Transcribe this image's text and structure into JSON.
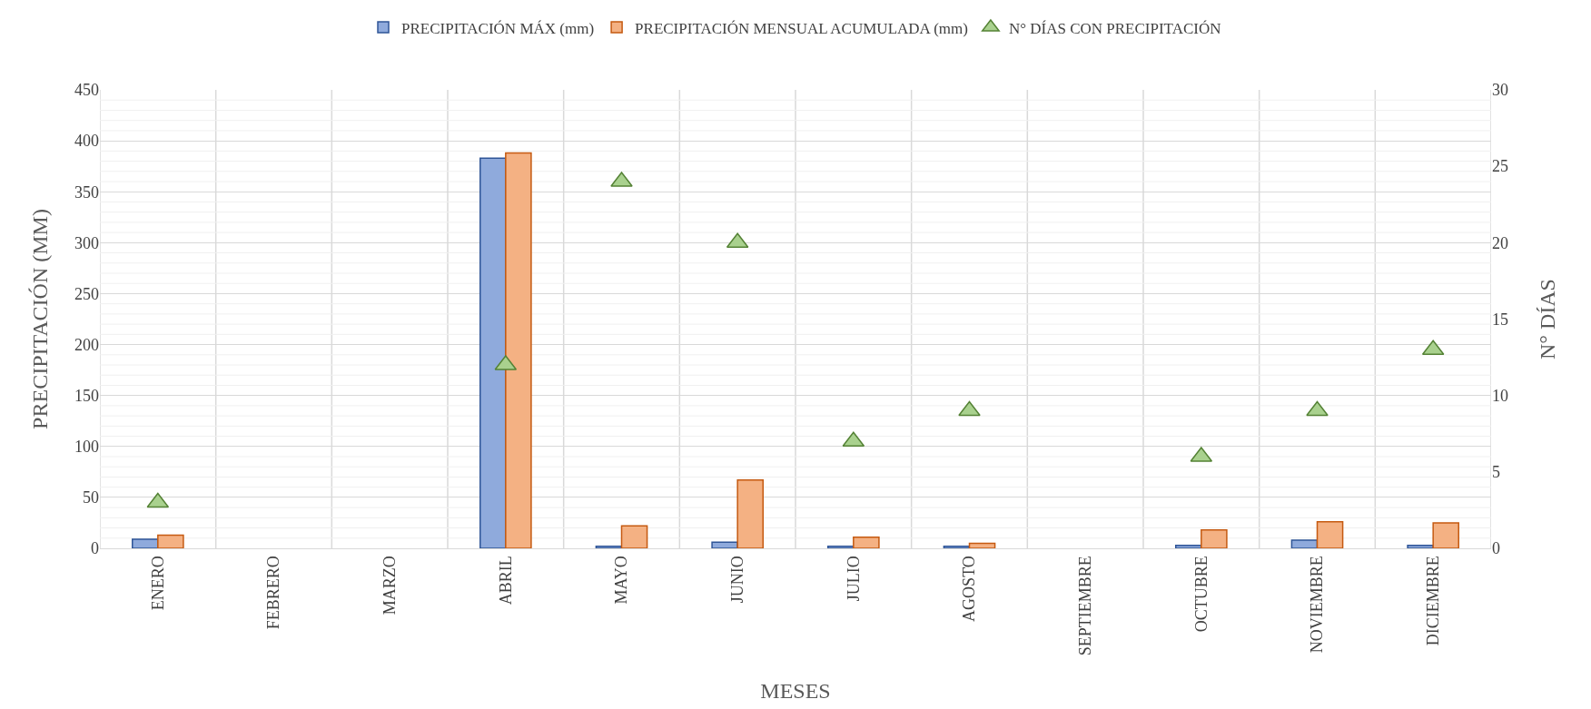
{
  "chart_data": {
    "type": "bar",
    "xlabel": "MESES",
    "ylabel": "PRECIPITACIÓN (MM)",
    "y2label": "N° DÍAS",
    "categories": [
      "ENERO",
      "FEBRERO",
      "MARZO",
      "ABRIL",
      "MAYO",
      "JUNIO",
      "JULIO",
      "AGOSTO",
      "SEPTIEMBRE",
      "OCTUBRE",
      "NOVIEMBRE",
      "DICIEMBRE"
    ],
    "series": [
      {
        "name": "PRECIPITACIÓN MÁX (mm)",
        "color": "#8faadc",
        "values": [
          9,
          null,
          null,
          383,
          2,
          6,
          2,
          2,
          null,
          3,
          8,
          3
        ]
      },
      {
        "name": "PRECIPITACIÓN MENSUAL ACUMULADA (mm)",
        "color": "#f4b183",
        "values": [
          13,
          null,
          null,
          388,
          22,
          67,
          11,
          5,
          null,
          18,
          26,
          25
        ]
      },
      {
        "name": "N° DÍAS CON PRECIPITACIÓN",
        "type": "scatter",
        "axis": "y2",
        "marker": "triangle",
        "color": "#a9d18e",
        "values": [
          3,
          null,
          null,
          12,
          24,
          20,
          7,
          9,
          null,
          6,
          9,
          13
        ]
      }
    ],
    "ylim": [
      0,
      450
    ],
    "yticks": [
      0,
      50,
      100,
      150,
      200,
      250,
      300,
      350,
      400,
      450
    ],
    "y2lim": [
      0,
      30
    ],
    "y2ticks": [
      0,
      5,
      10,
      15,
      20,
      25,
      30
    ],
    "grid": true,
    "legend": "top"
  }
}
